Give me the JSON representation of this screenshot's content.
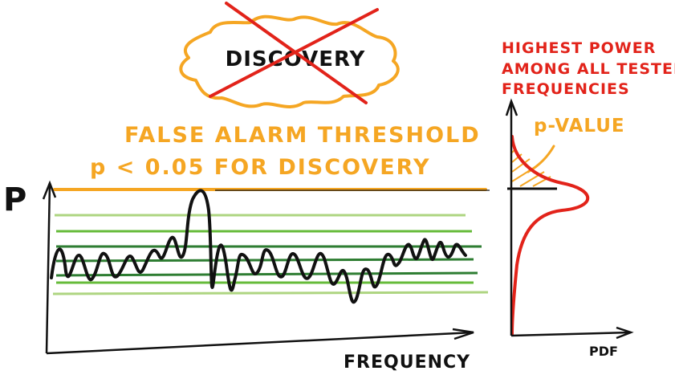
{
  "discovery_badge": {
    "label": "DISCOVERY",
    "crossed_out": true
  },
  "threshold": {
    "line1": "FALSE ALARM THRESHOLD",
    "line2": "p < 0.05  FOR DISCOVERY"
  },
  "periodogram": {
    "y_label": "P",
    "x_label": "FREQUENCY"
  },
  "pdf_panel": {
    "title_lines": [
      "HIGHEST POWER",
      "AMONG ALL TESTED",
      "FREQUENCIES"
    ],
    "p_value_label": "p-VALUE",
    "x_label": "PDF"
  },
  "colors": {
    "ink": "#111111",
    "orange": "#f5a623",
    "red": "#e2231a",
    "green_dark": "#2e7d32",
    "green_mid": "#66bb3a",
    "green_light": "#aed581"
  }
}
